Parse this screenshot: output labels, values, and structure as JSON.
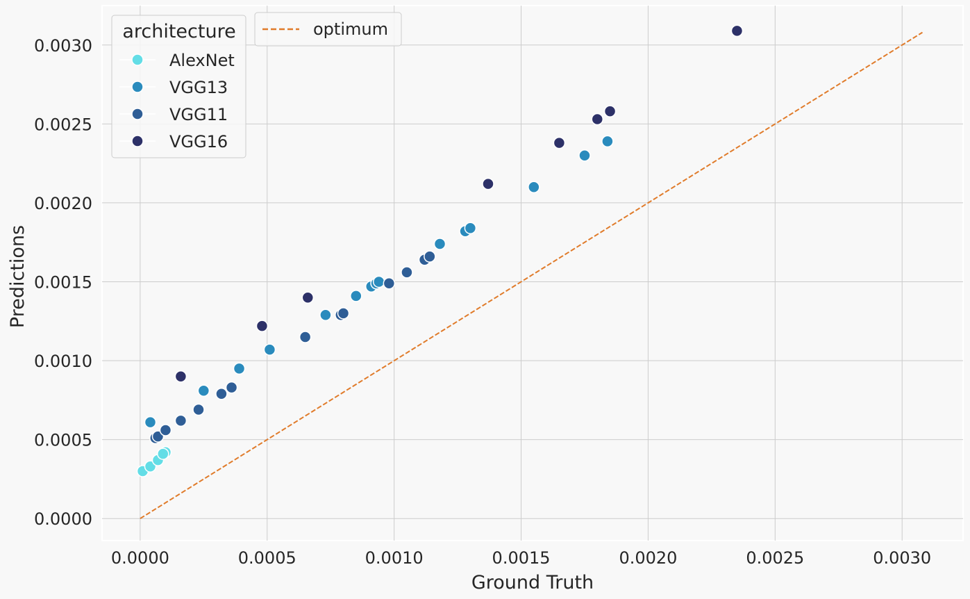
{
  "chart_data": {
    "type": "scatter",
    "xlabel": "Ground Truth",
    "ylabel": "Predictions",
    "xlim": [
      -0.00015,
      0.00324
    ],
    "ylim": [
      -0.00014,
      0.00325
    ],
    "xticks": [
      0.0,
      0.0005,
      0.001,
      0.0015,
      0.002,
      0.0025,
      0.003
    ],
    "xtick_labels": [
      "0.0000",
      "0.0005",
      "0.0010",
      "0.0015",
      "0.0020",
      "0.0025",
      "0.0030"
    ],
    "yticks": [
      0.0,
      0.0005,
      0.001,
      0.0015,
      0.002,
      0.0025,
      0.003
    ],
    "ytick_labels": [
      "0.0000",
      "0.0005",
      "0.0010",
      "0.0015",
      "0.0020",
      "0.0025",
      "0.0030"
    ],
    "grid": true,
    "legend": {
      "title": "architecture",
      "placement": "top-left",
      "entries": [
        "AlexNet",
        "VGG13",
        "VGG11",
        "VGG16"
      ]
    },
    "line_legend": {
      "placement": "top-left",
      "label": "optimum"
    },
    "optimum_line": {
      "label": "optimum",
      "color": "#e07b2a",
      "x": [
        0.0,
        0.00308
      ],
      "y": [
        0.0,
        0.00308
      ]
    },
    "series": [
      {
        "name": "AlexNet",
        "color": "#63dde6",
        "points": [
          [
            1e-05,
            0.0003
          ],
          [
            4e-05,
            0.00033
          ],
          [
            7e-05,
            0.00037
          ],
          [
            0.0001,
            0.00042
          ],
          [
            9e-05,
            0.00041
          ]
        ]
      },
      {
        "name": "VGG13",
        "color": "#2a8bbd",
        "points": [
          [
            4e-05,
            0.00061
          ],
          [
            0.00025,
            0.00081
          ],
          [
            0.00039,
            0.00095
          ],
          [
            0.00051,
            0.00107
          ],
          [
            0.00073,
            0.00129
          ],
          [
            0.00085,
            0.00141
          ],
          [
            0.00091,
            0.00147
          ],
          [
            0.00093,
            0.00149
          ],
          [
            0.00094,
            0.0015
          ],
          [
            0.00118,
            0.00174
          ],
          [
            0.00128,
            0.00182
          ],
          [
            0.0013,
            0.00184
          ],
          [
            0.00155,
            0.0021
          ],
          [
            0.00175,
            0.0023
          ],
          [
            0.00184,
            0.00239
          ]
        ]
      },
      {
        "name": "VGG11",
        "color": "#2f5e96",
        "points": [
          [
            6e-05,
            0.00051
          ],
          [
            7e-05,
            0.00052
          ],
          [
            0.0001,
            0.00056
          ],
          [
            0.00016,
            0.00062
          ],
          [
            0.00023,
            0.00069
          ],
          [
            0.00032,
            0.00079
          ],
          [
            0.00036,
            0.00083
          ],
          [
            0.00065,
            0.00115
          ],
          [
            0.00079,
            0.00129
          ],
          [
            0.0008,
            0.0013
          ],
          [
            0.00098,
            0.00149
          ],
          [
            0.00105,
            0.00156
          ],
          [
            0.00112,
            0.00164
          ],
          [
            0.00114,
            0.00166
          ]
        ]
      },
      {
        "name": "VGG16",
        "color": "#2d3168",
        "points": [
          [
            0.00016,
            0.0009
          ],
          [
            0.00048,
            0.00122
          ],
          [
            0.00066,
            0.0014
          ],
          [
            0.00137,
            0.00212
          ],
          [
            0.00165,
            0.00238
          ],
          [
            0.0018,
            0.00253
          ],
          [
            0.00185,
            0.00258
          ],
          [
            0.00235,
            0.00309
          ]
        ]
      }
    ]
  }
}
